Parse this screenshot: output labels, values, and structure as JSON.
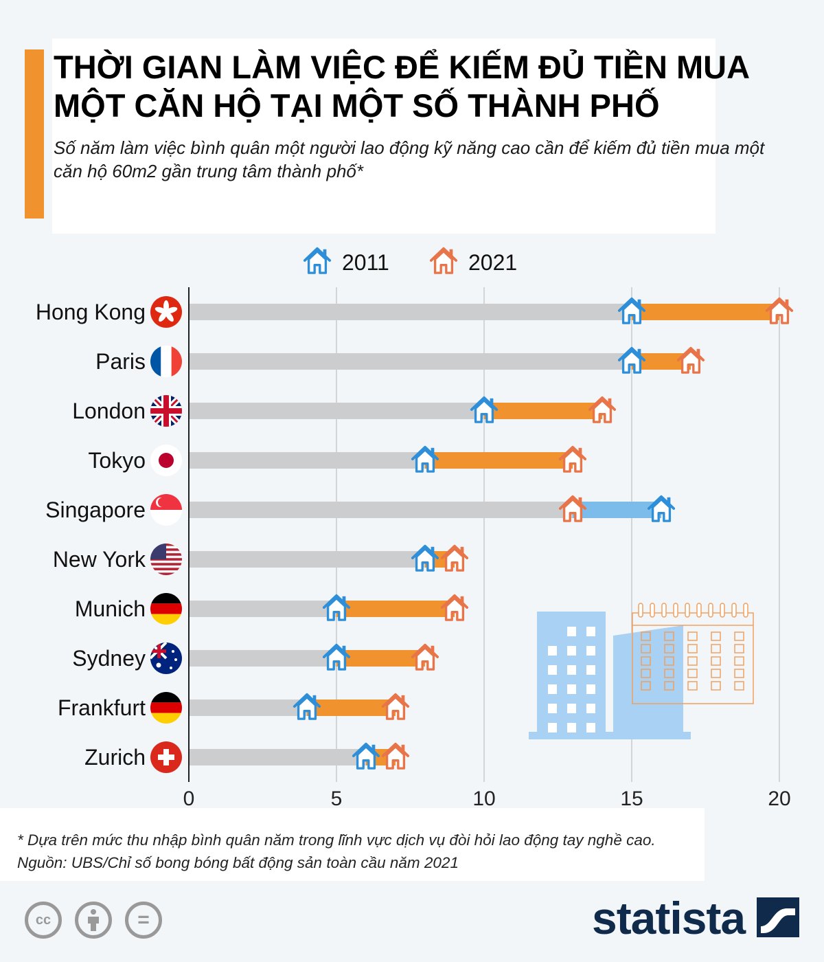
{
  "colors": {
    "accent": "#f0922e",
    "blue": "#2e8fd8",
    "blue_bar": "#7cbcea",
    "orange": "#f0922e",
    "orange_house": "#e8744a",
    "track": "#cbcdcf",
    "grid": "#bdbdbd",
    "illustration_blue": "#a9d1f3"
  },
  "title": "THỜI GIAN LÀM VIỆC ĐỂ KIẾM ĐỦ TIỀN MUA MỘT CĂN HỘ TẠI MỘT SỐ THÀNH PHỐ",
  "subtitle": "Số năm làm việc bình quân một người lao động kỹ năng cao cần để kiếm đủ tiền mua một căn hộ 60m2 gần trung tâm thành phố*",
  "chart_data": {
    "type": "dumbbell",
    "legend": [
      {
        "name": "2011",
        "icon": "house-icon",
        "color": "#2e8fd8"
      },
      {
        "name": "2021",
        "icon": "house-icon",
        "color": "#e8744a"
      }
    ],
    "x_ticks": [
      0,
      5,
      10,
      15,
      20
    ],
    "xlim": [
      0,
      20
    ],
    "series": [
      {
        "name": "2011",
        "values": [
          15,
          15,
          10,
          8,
          16,
          8,
          5,
          5,
          4,
          6
        ]
      },
      {
        "name": "2021",
        "values": [
          20,
          17,
          14,
          13,
          13,
          9,
          9,
          8,
          7,
          7
        ]
      }
    ],
    "categories": [
      {
        "label": "Hong Kong",
        "flag": "hong-kong-flag-icon"
      },
      {
        "label": "Paris",
        "flag": "france-flag-icon"
      },
      {
        "label": "London",
        "flag": "uk-flag-icon"
      },
      {
        "label": "Tokyo",
        "flag": "japan-flag-icon"
      },
      {
        "label": "Singapore",
        "flag": "singapore-flag-icon"
      },
      {
        "label": "New York",
        "flag": "usa-flag-icon"
      },
      {
        "label": "Munich",
        "flag": "germany-flag-icon"
      },
      {
        "label": "Sydney",
        "flag": "australia-flag-icon"
      },
      {
        "label": "Frankfurt",
        "flag": "germany-flag-icon"
      },
      {
        "label": "Zurich",
        "flag": "switzerland-flag-icon"
      }
    ]
  },
  "footer": {
    "note": "* Dựa trên mức thu nhập bình quân năm trong lĩnh vực dịch vụ đòi hỏi lao động tay nghề cao.",
    "source": "Nguồn: UBS/Chỉ số bong bóng bất động sản toàn cầu năm 2021"
  },
  "license": {
    "cc_label": "cc",
    "eq_label": "="
  },
  "brand": "statista"
}
